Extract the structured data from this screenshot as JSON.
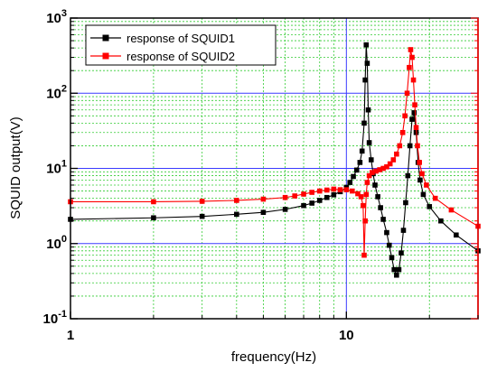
{
  "chart_data": {
    "type": "line",
    "x_scale": "log",
    "y_scale": "log",
    "xlim": [
      1,
      30
    ],
    "ylim": [
      0.1,
      1000
    ],
    "xlabel": "frequency(Hz)",
    "ylabel": "SQUID output(V)",
    "x_ticks": [
      {
        "value": 1,
        "label": "1"
      },
      {
        "value": 10,
        "label": "10"
      }
    ],
    "y_ticks": [
      {
        "value": 0.1,
        "base": "10",
        "exp": "-1"
      },
      {
        "value": 1,
        "base": "10",
        "exp": "0"
      },
      {
        "value": 10,
        "base": "10",
        "exp": "1"
      },
      {
        "value": 100,
        "base": "10",
        "exp": "2"
      },
      {
        "value": 1000,
        "base": "10",
        "exp": "3"
      }
    ],
    "grid": true,
    "legend_position": "top-left",
    "series": [
      {
        "name": "response of SQUID1",
        "color": "#000000",
        "marker": "square",
        "x": [
          1,
          2,
          3,
          4,
          5,
          6,
          7,
          7.5,
          8,
          8.5,
          9,
          9.5,
          10,
          10.3,
          10.6,
          10.9,
          11.2,
          11.4,
          11.6,
          11.7,
          11.8,
          11.9,
          12.0,
          12.1,
          12.3,
          12.5,
          12.7,
          13.0,
          13.3,
          13.6,
          14.0,
          14.3,
          14.6,
          14.9,
          15.2,
          15.5,
          15.8,
          16.1,
          16.4,
          16.7,
          17.0,
          17.3,
          17.6,
          17.9,
          18.2,
          18.5,
          19.0,
          20,
          22,
          25,
          30
        ],
        "y": [
          2.1,
          2.2,
          2.3,
          2.45,
          2.6,
          2.85,
          3.2,
          3.45,
          3.75,
          4.1,
          4.45,
          4.9,
          5.6,
          6.5,
          7.8,
          9.5,
          12,
          17,
          40,
          150,
          440,
          250,
          60,
          22,
          13,
          8.5,
          6,
          4.2,
          3.0,
          2.1,
          1.4,
          0.95,
          0.65,
          0.45,
          0.38,
          0.45,
          0.75,
          1.5,
          3.5,
          8,
          20,
          45,
          55,
          30,
          12,
          7,
          4.5,
          3.1,
          2.0,
          1.3,
          0.8
        ]
      },
      {
        "name": "response of SQUID2",
        "color": "#ff0000",
        "marker": "square",
        "x": [
          1,
          2,
          3,
          4,
          5,
          6,
          6.5,
          7,
          7.5,
          8,
          8.5,
          9,
          9.5,
          10,
          10.5,
          11.0,
          11.3,
          11.5,
          11.6,
          11.7,
          11.8,
          11.9,
          12.1,
          12.4,
          12.8,
          13.2,
          13.6,
          14.0,
          14.4,
          14.8,
          15.2,
          15.6,
          16.0,
          16.3,
          16.6,
          16.9,
          17.1,
          17.3,
          17.5,
          17.7,
          17.9,
          18.1,
          18.4,
          18.8,
          19.5,
          21,
          24,
          30
        ],
        "y": [
          3.6,
          3.6,
          3.65,
          3.75,
          3.9,
          4.1,
          4.3,
          4.55,
          4.8,
          5.0,
          5.15,
          5.3,
          5.2,
          5.2,
          5.0,
          4.6,
          4.2,
          3.2,
          0.7,
          2.0,
          4.5,
          6.5,
          8.0,
          8.8,
          9.2,
          9.6,
          10,
          10.5,
          11.5,
          13,
          15.5,
          20,
          30,
          50,
          100,
          220,
          380,
          300,
          150,
          70,
          35,
          20,
          12,
          8.5,
          6.0,
          4.0,
          2.8,
          1.7
        ]
      }
    ]
  }
}
